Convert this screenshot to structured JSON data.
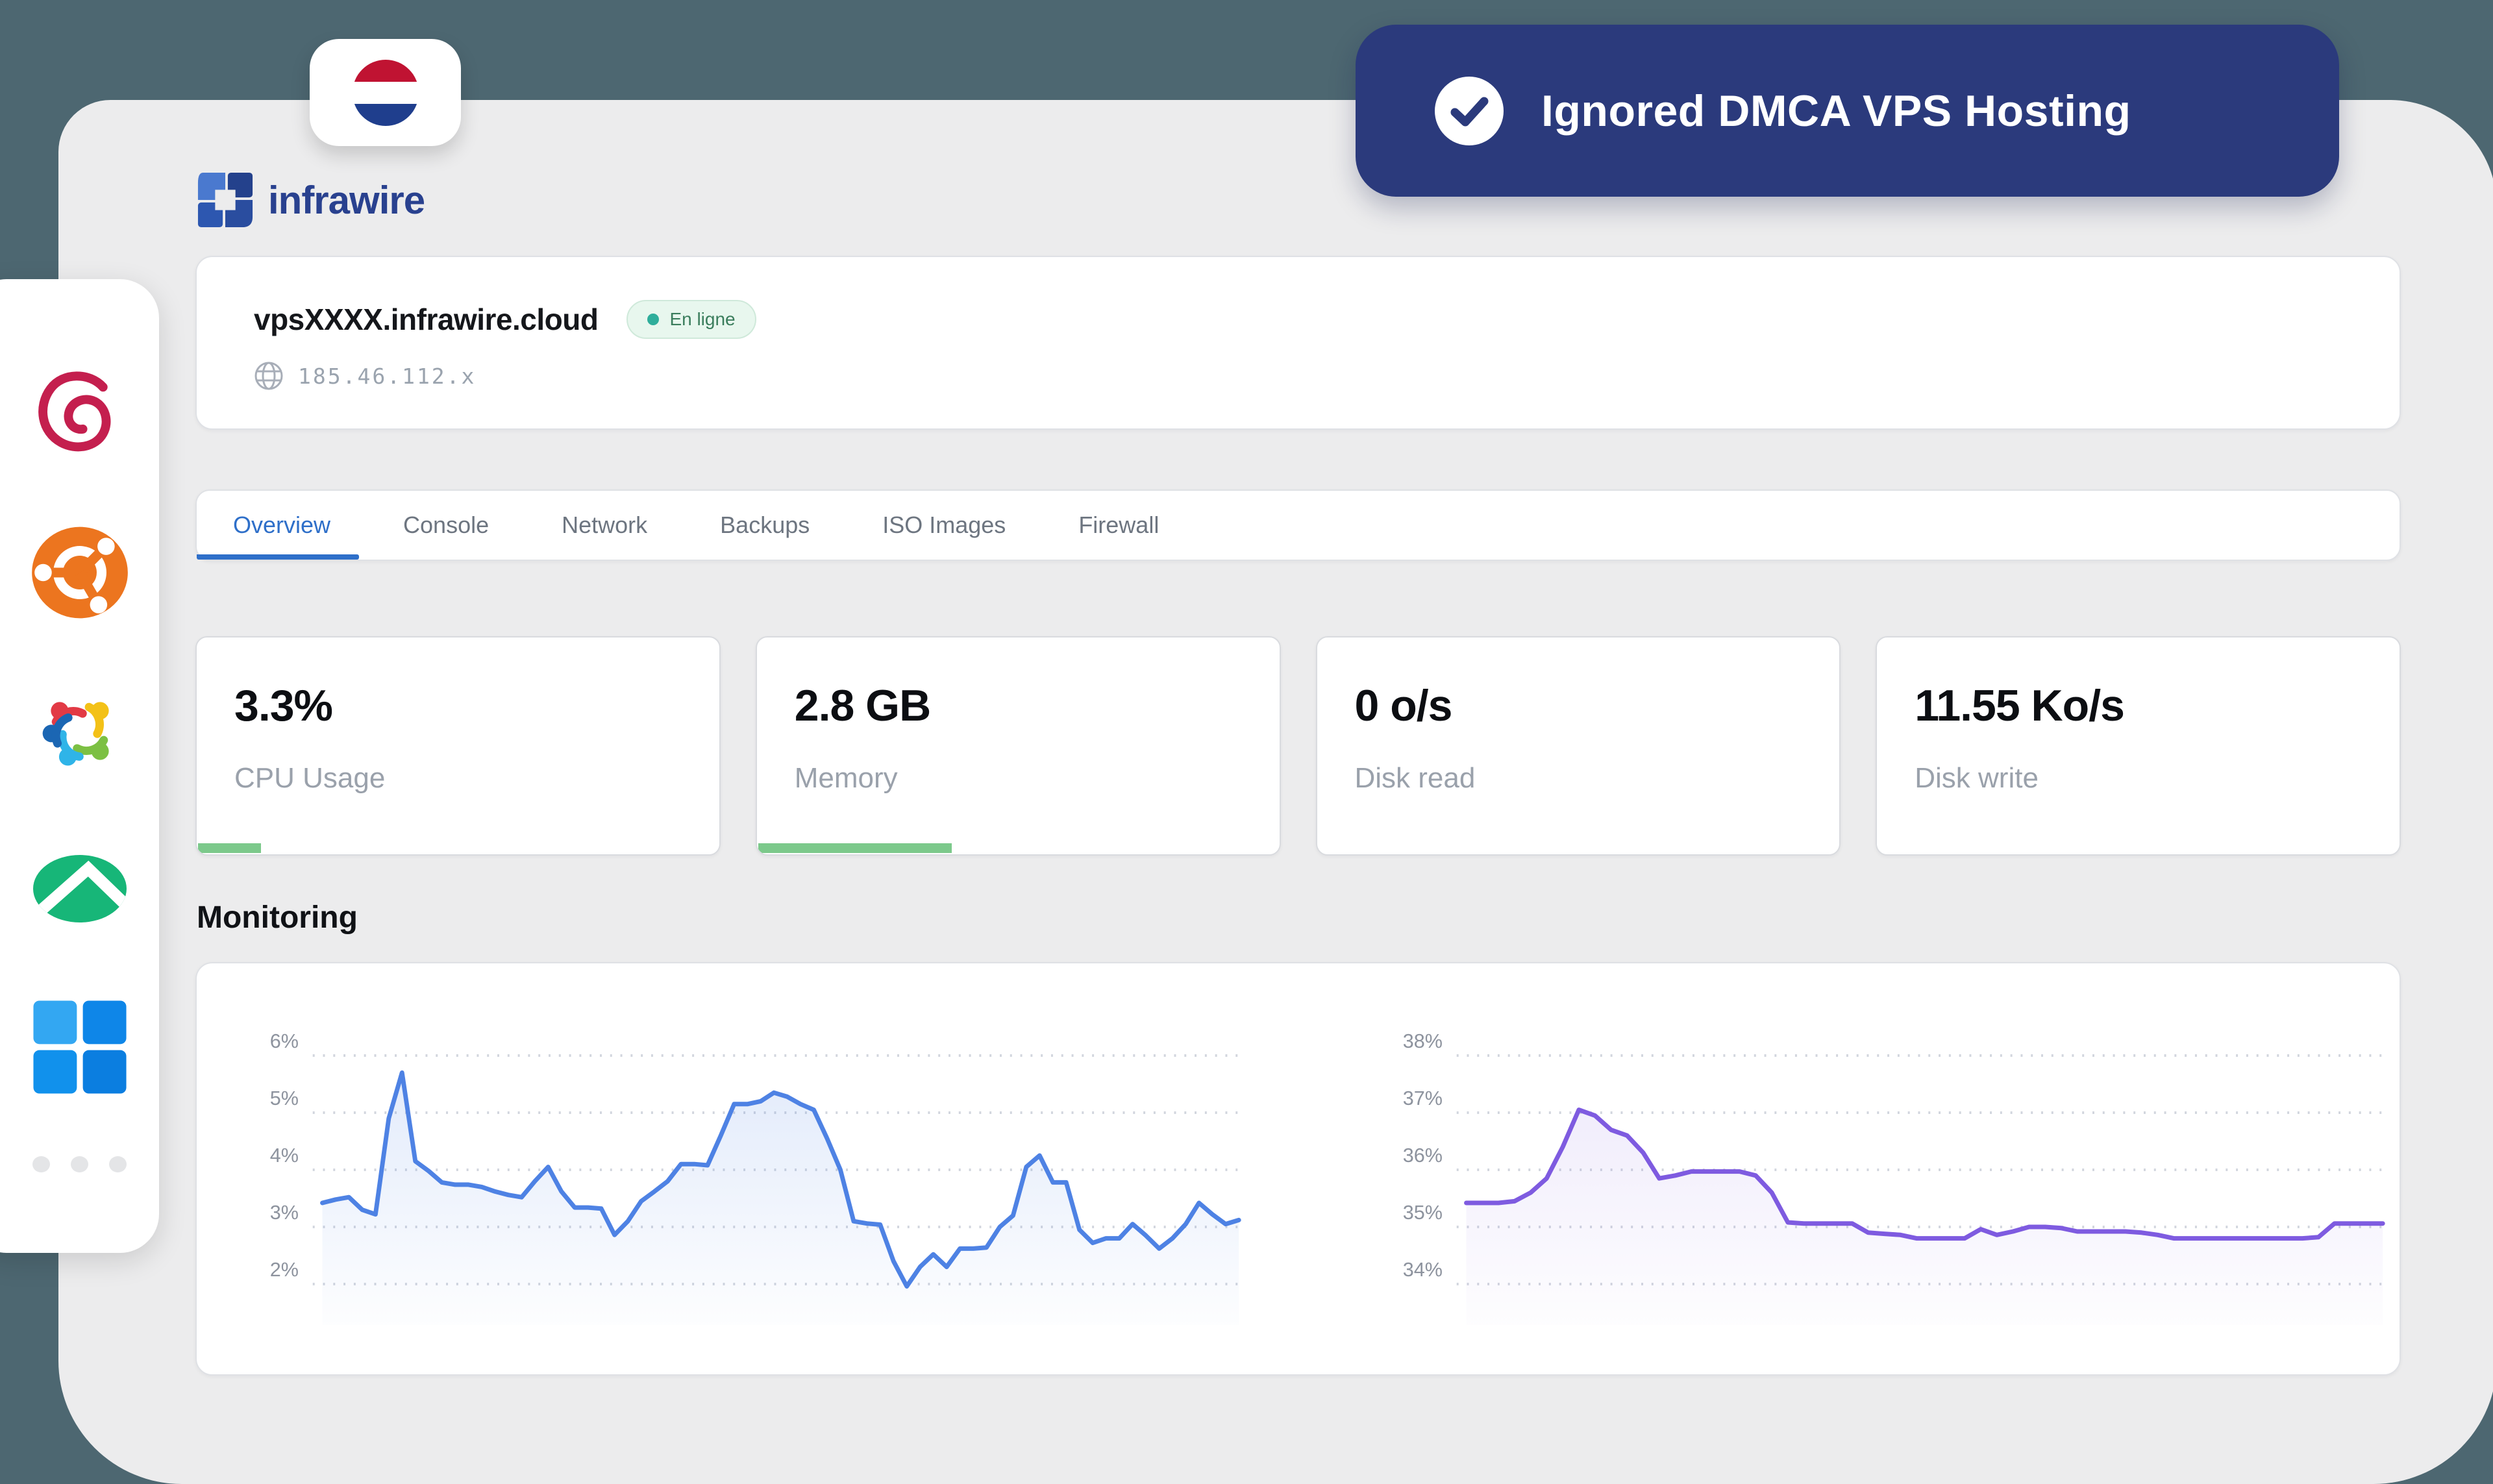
{
  "brand": {
    "name": "infrawire",
    "logo_color": "#29418f"
  },
  "top_banner": {
    "text": "Ignored DMCA VPS Hosting",
    "bg": "#2b3a7c",
    "icon": "check-circle-icon"
  },
  "flag_badge": {
    "name": "netherlands-flag",
    "stripe_colors": [
      "#c01332",
      "#ffffff",
      "#1f3e8d"
    ]
  },
  "sidebar": {
    "os_icons": [
      {
        "name": "debian"
      },
      {
        "name": "ubuntu"
      },
      {
        "name": "almalinux"
      },
      {
        "name": "rocky-linux"
      },
      {
        "name": "windows"
      }
    ],
    "more_dots": 3
  },
  "server": {
    "hostname": "vpsXXXX.infrawire.cloud",
    "status_label": "En ligne",
    "status_color": "#2fae9b",
    "ip": "185.46.112.x"
  },
  "tabs": [
    {
      "label": "Overview",
      "active": true
    },
    {
      "label": "Console",
      "active": false
    },
    {
      "label": "Network",
      "active": false
    },
    {
      "label": "Backups",
      "active": false
    },
    {
      "label": "ISO Images",
      "active": false
    },
    {
      "label": "Firewall",
      "active": false
    }
  ],
  "stats": [
    {
      "value": "3.3%",
      "label": "CPU Usage",
      "progress_percent": 12
    },
    {
      "value": "2.8 GB",
      "label": "Memory",
      "progress_percent": 37
    },
    {
      "value": "0 o/s",
      "label": "Disk read",
      "progress_percent": null
    },
    {
      "value": "11.55 Ko/s",
      "label": "Disk write",
      "progress_percent": null
    }
  ],
  "monitoring": {
    "title": "Monitoring"
  },
  "theme": {
    "background": "#4d6771",
    "panel": "#ececed",
    "accent_blue": "#2e6fc9",
    "progress_green": "#7cc98b",
    "chart_blue": "#4e82e4",
    "chart_purple": "#7e5be0"
  },
  "chart_data": [
    {
      "type": "area",
      "series_name": "CPU usage %",
      "yticks": [
        6,
        5,
        4,
        3,
        2
      ],
      "tick_suffix": "%",
      "ylim": [
        1.3,
        7.0
      ],
      "grid": "dotted-horizontal",
      "legend": "none",
      "line_color": "#4e82e4",
      "fill_from": "rgba(78,130,228,0.16)",
      "fill_to": "rgba(78,130,228,0.01)",
      "values": [
        3.42,
        3.48,
        3.52,
        3.3,
        3.22,
        4.9,
        5.7,
        4.15,
        3.98,
        3.78,
        3.74,
        3.74,
        3.7,
        3.62,
        3.56,
        3.52,
        3.8,
        4.05,
        3.62,
        3.34,
        3.34,
        3.32,
        2.86,
        3.1,
        3.45,
        3.62,
        3.8,
        4.1,
        4.1,
        4.08,
        4.6,
        5.15,
        5.15,
        5.2,
        5.35,
        5.28,
        5.15,
        5.05,
        4.55,
        4.0,
        3.1,
        3.06,
        3.04,
        2.4,
        1.96,
        2.3,
        2.52,
        2.3,
        2.62,
        2.62,
        2.64,
        3.0,
        3.2,
        4.05,
        4.25,
        3.78,
        3.78,
        2.95,
        2.72,
        2.8,
        2.8,
        3.05,
        2.85,
        2.62,
        2.8,
        3.05,
        3.42,
        3.22,
        3.05,
        3.12
      ]
    },
    {
      "type": "area",
      "series_name": "Memory usage %",
      "yticks": [
        38,
        37,
        36,
        35,
        34
      ],
      "tick_suffix": "%",
      "ylim": [
        33.3,
        39.0
      ],
      "grid": "dotted-horizontal",
      "legend": "none",
      "line_color": "#7e5be0",
      "fill_from": "rgba(126,91,224,0.11)",
      "fill_to": "rgba(126,91,224,0.01)",
      "values": [
        35.42,
        35.42,
        35.42,
        35.45,
        35.6,
        35.85,
        36.4,
        37.05,
        36.95,
        36.7,
        36.6,
        36.3,
        35.85,
        35.9,
        35.97,
        35.97,
        35.97,
        35.97,
        35.9,
        35.6,
        35.08,
        35.06,
        35.06,
        35.06,
        35.06,
        34.9,
        34.88,
        34.86,
        34.8,
        34.8,
        34.8,
        34.8,
        34.96,
        34.86,
        34.92,
        35.0,
        35.0,
        34.98,
        34.92,
        34.92,
        34.92,
        34.92,
        34.9,
        34.86,
        34.8,
        34.8,
        34.8,
        34.8,
        34.8,
        34.8,
        34.8,
        34.8,
        34.8,
        34.82,
        35.06,
        35.06,
        35.06,
        35.06
      ]
    }
  ]
}
